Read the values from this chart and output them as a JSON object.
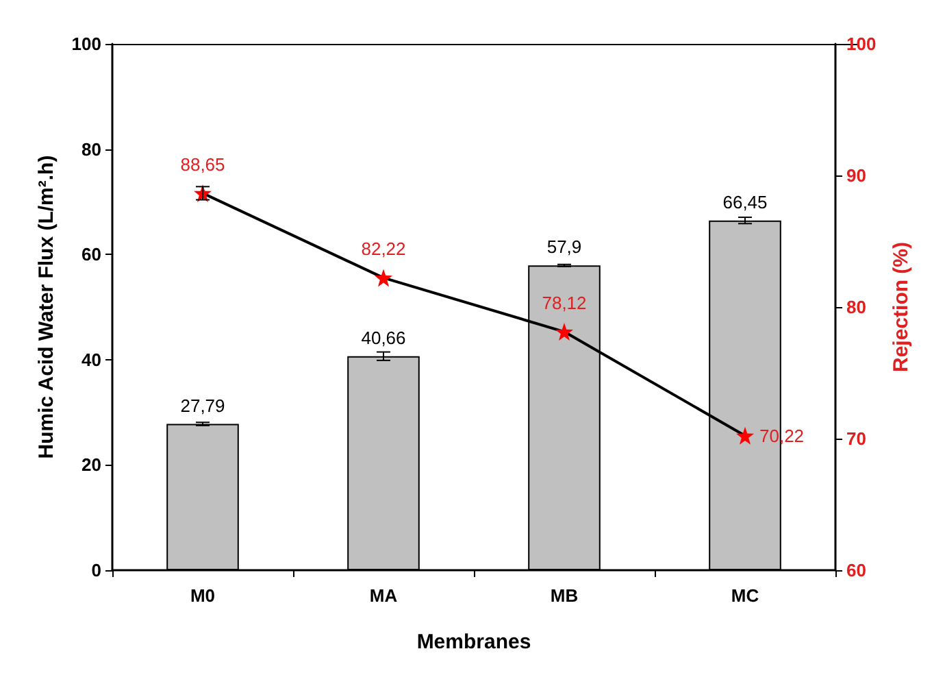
{
  "chart_data": {
    "type": "bar",
    "xlabel": "Membranes",
    "ylabel": "Humic Acid Water Flux (L/m².h)",
    "y2label": "Rejection (%)",
    "categories": [
      "M0",
      "MA",
      "MB",
      "MC"
    ],
    "series": [
      {
        "color": "#c0c0c0",
        "values": [
          27.79,
          40.66,
          57.9,
          66.45
        ],
        "errors": [
          0.3,
          0.8,
          0.2,
          0.6
        ],
        "value_labels": [
          "27,79",
          "40,66",
          "57,9",
          "66,45"
        ]
      },
      {
        "type": "line",
        "axis": "y2",
        "color": "#000000",
        "colors": [
          "#ff0000",
          "#ff0000",
          "#ff0000",
          "#ff0000"
        ],
        "values": [
          88.65,
          82.22,
          78.12,
          70.22
        ],
        "errors": [
          0.5,
          null,
          null,
          null
        ],
        "value_labels": [
          "88,65",
          "82,22",
          "78,12",
          "70,22"
        ],
        "marker": "star"
      }
    ],
    "ylim": [
      0,
      100
    ],
    "yticks": [
      0,
      20,
      40,
      60,
      80,
      100
    ],
    "y2lim": [
      60,
      100
    ],
    "y2ticks": [
      60,
      70,
      80,
      90,
      100
    ],
    "grid": false
  }
}
